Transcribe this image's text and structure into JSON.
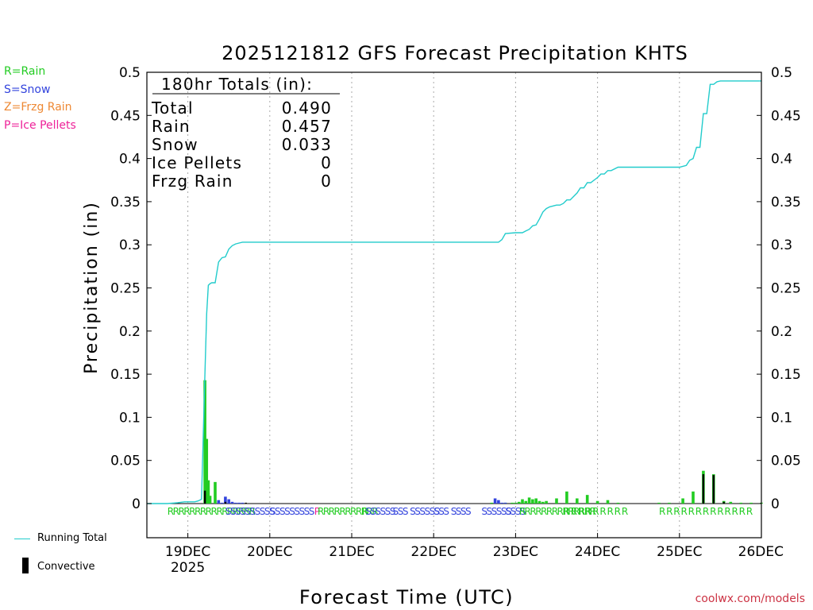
{
  "chart_data": {
    "type": "bar",
    "title": "2025121812 GFS Forecast Precipitation KHTS",
    "ylabel": "Precipitation (in)",
    "xlabel": "Forecast Time (UTC)",
    "ylim": [
      -0.04,
      0.5
    ],
    "yticks": [
      "0",
      "0.05",
      "0.1",
      "0.15",
      "0.2",
      "0.25",
      "0.3",
      "0.35",
      "0.4",
      "0.45",
      "0.5"
    ],
    "ytick_values": [
      0,
      0.05,
      0.1,
      0.15,
      0.2,
      0.25,
      0.3,
      0.35,
      0.4,
      0.45,
      0.5
    ],
    "xlim_hours": [
      0,
      180
    ],
    "xticks": [
      {
        "label": "19DEC",
        "hour": 12
      },
      {
        "label": "20DEC",
        "hour": 36
      },
      {
        "label": "21DEC",
        "hour": 60
      },
      {
        "label": "22DEC",
        "hour": 84
      },
      {
        "label": "23DEC",
        "hour": 108
      },
      {
        "label": "24DEC",
        "hour": 132
      },
      {
        "label": "25DEC",
        "hour": 156
      },
      {
        "label": "26DEC",
        "hour": 180
      }
    ],
    "year_label": "2025",
    "totals_box": {
      "header": "180hr Totals (in):",
      "rows": [
        {
          "name": "Total",
          "value": "0.490"
        },
        {
          "name": "Rain",
          "value": "0.457"
        },
        {
          "name": "Snow",
          "value": "0.033"
        },
        {
          "name": "Ice Pellets",
          "value": "0"
        },
        {
          "name": "Frzg Rain",
          "value": "0"
        }
      ]
    },
    "legend": [
      {
        "label": "R=Rain",
        "color": "#22cc22"
      },
      {
        "label": "S=Snow",
        "color": "#3344dd"
      },
      {
        "label": "Z=Frzg Rain",
        "color": "#ee8833"
      },
      {
        "label": "P=Ice Pellets",
        "color": "#ee2299"
      }
    ],
    "bottom_legend": [
      {
        "label": "Running Total",
        "color": "#22cccc"
      },
      {
        "label": "Convective",
        "color": "#000000"
      }
    ],
    "running_total": {
      "color": "#22cccc",
      "hours": [
        0,
        6,
        9,
        11,
        12,
        13,
        14,
        15,
        16,
        17,
        17.5,
        18,
        18.5,
        19,
        20,
        21,
        22,
        23,
        24,
        25,
        26,
        27,
        28,
        30,
        32,
        34,
        36,
        60,
        84,
        100,
        102,
        103,
        104,
        105,
        108,
        109,
        110,
        111,
        112,
        113,
        114,
        115,
        116,
        117,
        118,
        120,
        121,
        122,
        123,
        124,
        126,
        127,
        128,
        129,
        130,
        132,
        133,
        134,
        135,
        136,
        138,
        139,
        140,
        141,
        142,
        144,
        150,
        156,
        157,
        158,
        159,
        160,
        161,
        162,
        163,
        164,
        165,
        166,
        167,
        168,
        170,
        174,
        178,
        180
      ],
      "values": [
        0,
        0,
        0.001,
        0.002,
        0.002,
        0.002,
        0.002,
        0.003,
        0.005,
        0.15,
        0.22,
        0.253,
        0.255,
        0.256,
        0.256,
        0.28,
        0.285,
        0.286,
        0.295,
        0.299,
        0.301,
        0.302,
        0.303,
        0.303,
        0.303,
        0.303,
        0.303,
        0.303,
        0.303,
        0.303,
        0.303,
        0.303,
        0.306,
        0.313,
        0.314,
        0.314,
        0.314,
        0.316,
        0.318,
        0.322,
        0.323,
        0.33,
        0.338,
        0.342,
        0.344,
        0.346,
        0.346,
        0.348,
        0.352,
        0.352,
        0.36,
        0.366,
        0.366,
        0.372,
        0.372,
        0.378,
        0.382,
        0.382,
        0.386,
        0.386,
        0.39,
        0.39,
        0.39,
        0.39,
        0.39,
        0.39,
        0.39,
        0.39,
        0.391,
        0.392,
        0.398,
        0.4,
        0.413,
        0.413,
        0.452,
        0.452,
        0.486,
        0.486,
        0.489,
        0.49,
        0.49,
        0.49,
        0.49,
        0.49
      ]
    },
    "series": [
      {
        "name": "Rain",
        "color": "#22cc22",
        "hours": [
          17,
          17.5,
          18,
          18.5,
          20,
          101,
          103,
          105,
          107,
          108,
          109,
          110,
          111,
          112,
          113,
          114,
          115,
          116,
          117,
          120,
          123,
          126,
          129,
          132,
          135,
          138,
          150,
          153,
          157,
          160,
          163,
          166,
          169,
          171,
          174,
          177,
          180
        ],
        "values": [
          0.143,
          0.075,
          0.027,
          0.009,
          0.025,
          0.001,
          0.001,
          0.001,
          0.001,
          0.001,
          0.002,
          0.005,
          0.003,
          0.007,
          0.005,
          0.006,
          0.003,
          0.002,
          0.003,
          0.006,
          0.014,
          0.006,
          0.01,
          0.003,
          0.004,
          0.001,
          0.001,
          0.001,
          0.006,
          0.014,
          0.038,
          0.034,
          0.003,
          0.002,
          0.001,
          0.001,
          0.001
        ]
      },
      {
        "name": "Snow",
        "color": "#3344dd",
        "hours": [
          21,
          22,
          23,
          24,
          25,
          26,
          27,
          28,
          102,
          103,
          104,
          105
        ],
        "values": [
          0.004,
          0.001,
          0.008,
          0.005,
          0.002,
          0.001,
          0.001,
          0.001,
          0.006,
          0.004,
          0.001,
          0.001
        ]
      },
      {
        "name": "Convective",
        "color": "#000000",
        "hours": [
          17,
          23,
          29,
          163,
          166,
          169
        ],
        "values": [
          0.015,
          0.002,
          0.001,
          0.034,
          0.033,
          0.002
        ]
      }
    ],
    "type_marks": [
      {
        "text": "RRRRRRRRRRRRRRRR",
        "hour": 6,
        "color": "#22cc22"
      },
      {
        "text": "SSSSSSSSSS",
        "hour": 23,
        "color": "#3344dd"
      },
      {
        "text": "SSSSSSSSS",
        "hour": 36,
        "color": "#3344dd"
      },
      {
        "text": "P",
        "hour": 49,
        "color": "#ee2299"
      },
      {
        "text": "RRRRRRRRRRR",
        "hour": 50,
        "color": "#22cc22"
      },
      {
        "text": "R",
        "hour": 63,
        "color": "#22cc22"
      },
      {
        "text": "SSSSSS",
        "hour": 64,
        "color": "#3344dd"
      },
      {
        "text": "SSS",
        "hour": 72,
        "color": "#3344dd"
      },
      {
        "text": "SSSSSS",
        "hour": 77,
        "color": "#3344dd"
      },
      {
        "text": "SSS",
        "hour": 84,
        "color": "#3344dd"
      },
      {
        "text": "SSSS",
        "hour": 89,
        "color": "#3344dd"
      },
      {
        "text": "SSSSSS",
        "hour": 98,
        "color": "#3344dd"
      },
      {
        "text": "SSSS",
        "hour": 105,
        "color": "#3344dd"
      },
      {
        "text": "RRRRRRRRRRRRRR",
        "hour": 109,
        "color": "#22cc22"
      },
      {
        "text": "R R R R R R R R R",
        "hour": 122,
        "color": "#22cc22"
      },
      {
        "text": "R R R R R R R R R R R R R",
        "hour": 150,
        "color": "#22cc22"
      }
    ]
  },
  "credit": "coolwx.com/models"
}
